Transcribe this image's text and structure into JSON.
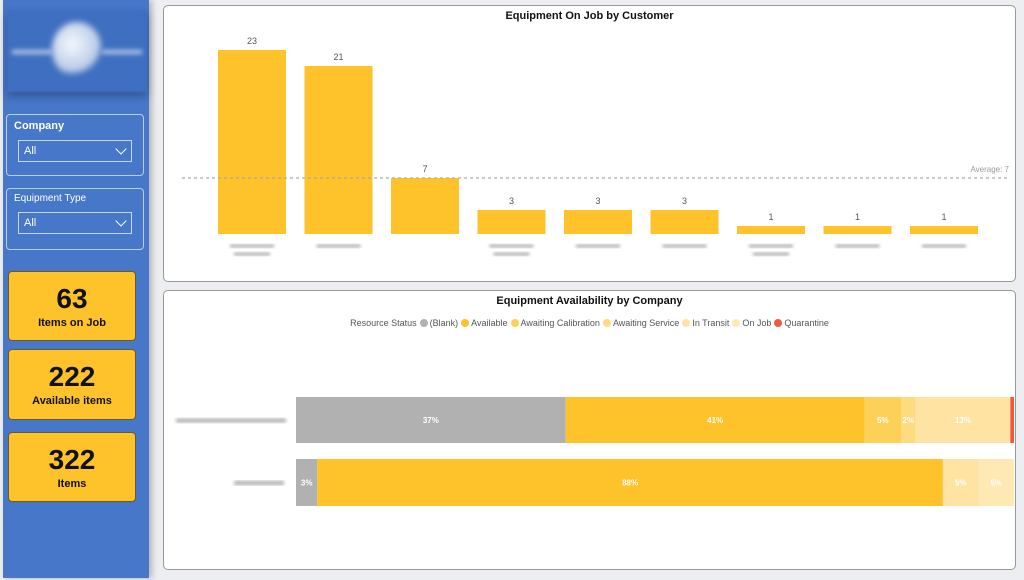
{
  "filters": {
    "company": {
      "label": "Company",
      "value": "All"
    },
    "equipment_type": {
      "label": "Equipment Type",
      "value": "All"
    }
  },
  "kpis": [
    {
      "value": "63",
      "label": "Items on Job"
    },
    {
      "value": "222",
      "label": "Available items"
    },
    {
      "value": "322",
      "label": "Items"
    }
  ],
  "chart_data": [
    {
      "type": "bar",
      "title": "Equipment On Job by Customer",
      "values": [
        23,
        21,
        7,
        3,
        3,
        3,
        1,
        1,
        1
      ],
      "reference_line": {
        "label": "Average: 7",
        "value": 7
      },
      "ylim": [
        0,
        23
      ],
      "color": "#fec22a",
      "note": "category labels blurred"
    },
    {
      "type": "bar",
      "orientation": "horizontal-stacked-100",
      "title": "Equipment Availability by Company",
      "legend_title": "Resource Status",
      "legend_position": "top",
      "series": [
        {
          "name": "(Blank)",
          "color": "#b1b1b1",
          "values": [
            37,
            3
          ]
        },
        {
          "name": "Available",
          "color": "#fec22a",
          "values": [
            41,
            88
          ]
        },
        {
          "name": "Awaiting Calibration",
          "color": "#fdd057",
          "values": [
            5,
            0
          ]
        },
        {
          "name": "Awaiting Service",
          "color": "#fedb7e",
          "values": [
            2,
            0
          ]
        },
        {
          "name": "In Transit",
          "color": "#fee3a3",
          "values": [
            13,
            5
          ]
        },
        {
          "name": "On Job",
          "color": "#fee8b4",
          "values": [
            0,
            5
          ]
        },
        {
          "name": "Quarantine",
          "color": "#ef5a3a",
          "values": [
            0.5,
            0
          ]
        }
      ],
      "labels": [
        [
          "37%",
          "41%",
          "5%",
          "2%",
          "13%",
          "",
          ""
        ],
        [
          "3%",
          "88%",
          "",
          "",
          "5%",
          "5%",
          ""
        ]
      ]
    }
  ]
}
